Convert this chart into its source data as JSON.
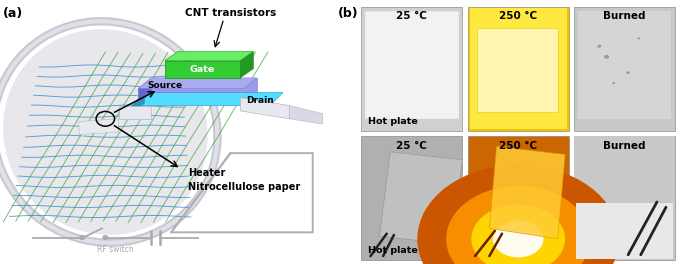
{
  "fig_width": 6.93,
  "fig_height": 2.64,
  "dpi": 100,
  "panel_a_label": "(a)",
  "panel_b_label": "(b)",
  "panel_a_title": "CNT transistors",
  "labels": {
    "gate": "Gate",
    "source": "Source",
    "drain": "Drain",
    "heater": "Heater",
    "nitrocellulose": "Nitrocellulose paper",
    "rf_switch": "RF switch"
  },
  "photos": [
    [
      {
        "temp": "25 °C",
        "bottom_label": "Hot plate",
        "bg": "#d0d0d0"
      },
      {
        "temp": "250 °C",
        "bottom_label": "",
        "bg": "#f5c200"
      },
      {
        "temp": "Burned",
        "bottom_label": "",
        "bg": "#c8c8c8"
      }
    ],
    [
      {
        "temp": "25 °C",
        "bottom_label": "Hot plate",
        "bg": "#b0b0b0"
      },
      {
        "temp": "250 °C",
        "bottom_label": "",
        "bg": "#cc6600"
      },
      {
        "temp": "Burned",
        "bottom_label": "",
        "bg": "#c0c0c0"
      }
    ]
  ],
  "cnt_blue": "#3388cc",
  "cnt_green": "#44aa44",
  "gate_green": "#33cc33",
  "gate_dark": "#229922",
  "gate_top": "#66ee66",
  "dielectric": "#8888dd",
  "dielectric_side": "#6666bb",
  "cyan_layer": "#55ccee",
  "cyan_side": "#3399bb",
  "white_lead": "#e8e8f0",
  "gray_border": "#c0c0c8",
  "rf_color": "#aaaaaa",
  "arrow_color": "#111111",
  "heater_outline": "#b0b0b0"
}
